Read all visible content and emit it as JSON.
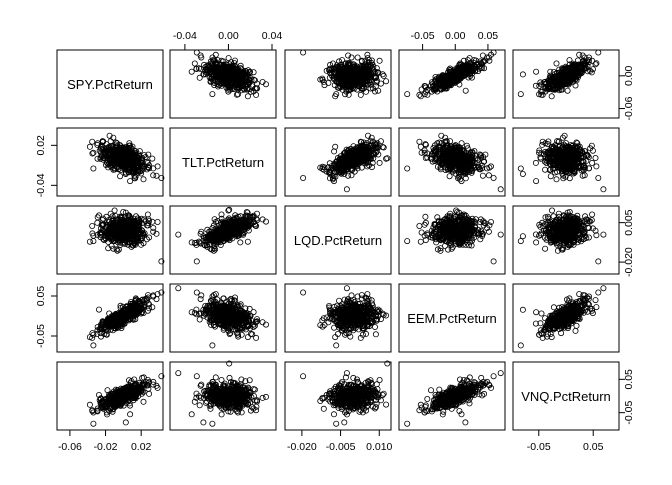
{
  "chart_data": {
    "type": "scatter",
    "kind": "pairs-matrix",
    "variables": [
      "SPY.PctReturn",
      "TLT.PctReturn",
      "LQD.PctReturn",
      "EEM.PctReturn",
      "VNQ.PctReturn"
    ],
    "axes": {
      "SPY.PctReturn": {
        "range": [
          -0.07,
          0.04
        ],
        "ticks": [
          -0.06,
          -0.02,
          0.02
        ],
        "tick_labels": [
          "-0.06",
          "-0.02",
          "0.02"
        ],
        "side": "bottom"
      },
      "TLT.PctReturn": {
        "range": [
          -0.05,
          0.04
        ],
        "ticks": [
          -0.04,
          0.0,
          0.04
        ],
        "tick_labels": [
          "-0.04",
          "0.00",
          "0.04"
        ],
        "side": "top",
        "left_ticks": [
          -0.04,
          0.02
        ],
        "left_tick_labels": [
          "-0.04",
          "0.02"
        ]
      },
      "LQD.PctReturn": {
        "range": [
          -0.025,
          0.013
        ],
        "ticks": [
          -0.02,
          -0.005,
          0.01
        ],
        "tick_labels": [
          "-0.020",
          "-0.005",
          "0.010"
        ],
        "side": "bottom",
        "right_ticks": [
          -0.02,
          0.005
        ],
        "right_tick_labels": [
          "-0.020",
          "0.005"
        ]
      },
      "EEM.PctReturn": {
        "range": [
          -0.08,
          0.07
        ],
        "ticks": [
          -0.05,
          0.0,
          0.05
        ],
        "tick_labels": [
          "-0.05",
          "0.00",
          "0.05"
        ],
        "side": "top",
        "left_ticks": [
          -0.05,
          0.05
        ],
        "left_tick_labels": [
          "-0.05",
          "0.05"
        ]
      },
      "VNQ.PctReturn": {
        "range": [
          -0.09,
          0.09
        ],
        "ticks": [
          -0.05,
          0.05
        ],
        "tick_labels": [
          "-0.05",
          "0.05"
        ],
        "side": "bottom",
        "right_ticks": [
          -0.05,
          0.05
        ],
        "right_tick_labels": [
          "-0.05",
          "0.05"
        ]
      }
    },
    "right_axis_SPY": {
      "ticks": [
        -0.06,
        0.0
      ],
      "tick_labels": [
        "-0.06",
        "0.00"
      ]
    },
    "spy_top_axis": {
      "ticks": [
        -0.04,
        0.0,
        0.04
      ],
      "tick_labels": [
        "-0.04",
        "0.00",
        "0.04"
      ]
    },
    "approx_correlations": {
      "SPY-TLT": -0.45,
      "SPY-LQD": 0.05,
      "SPY-EEM": 0.85,
      "SPY-VNQ": 0.75,
      "TLT-LQD": 0.7,
      "TLT-EEM": -0.35,
      "TLT-VNQ": -0.05,
      "LQD-EEM": 0.1,
      "LQD-VNQ": 0.15,
      "EEM-VNQ": 0.7
    },
    "point_style": "open-circle",
    "grid": false,
    "legend": "none"
  }
}
